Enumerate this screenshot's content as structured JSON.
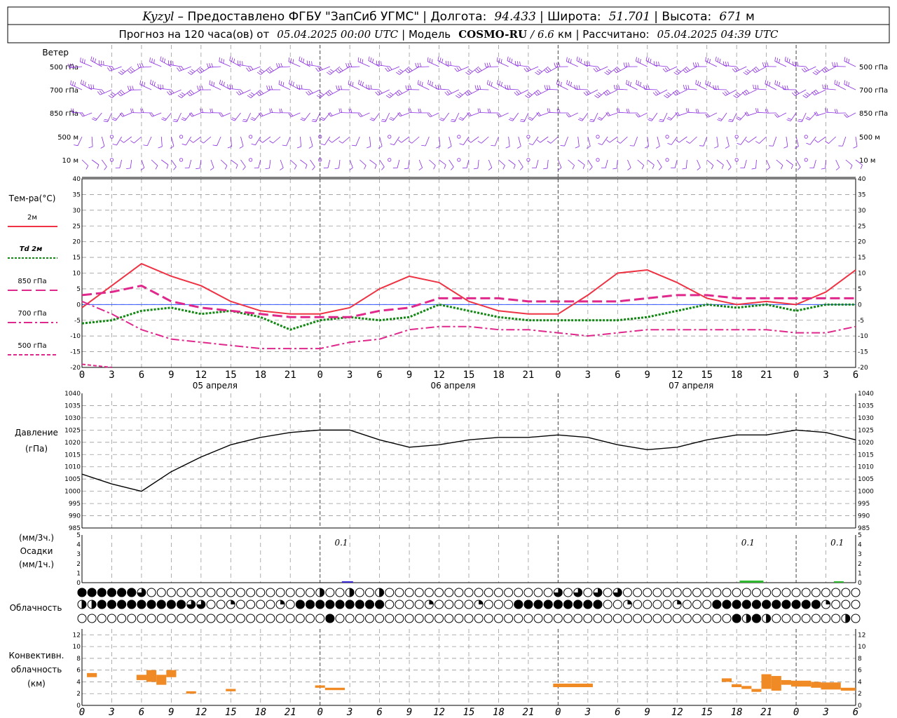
{
  "header": {
    "station": "Kyzyl",
    "dash": " – ",
    "provider": "Предоставлено ФГБУ \"ЗапСиб УГМС\"",
    "lon_label": "Долгота:",
    "lon_value": "94.433",
    "lat_label": "Широта:",
    "lat_value": "51.701",
    "alt_label": "Высота:",
    "alt_value": "671",
    "alt_unit": "м",
    "forecast_prefix": "Прогноз на 120 часа(ов) от",
    "forecast_start": "05.04.2025 00:00 UTC",
    "model_label": "Модель",
    "model_name": "COSMO-RU",
    "model_res": "6.6",
    "model_res_unit": "км",
    "computed_label": "Рассчитано:",
    "computed_time": "05.04.2025 04:39 UTC"
  },
  "wind": {
    "title": "Ветер",
    "levels": [
      "500 гПа",
      "700 гПа",
      "850 гПа",
      "500 м",
      "10 м"
    ],
    "barb_color": "#8a2be2"
  },
  "temperature": {
    "title": "Тем-ра(°C)",
    "legend": [
      {
        "label": "2м",
        "color": "#ee3344",
        "style": "solid"
      },
      {
        "label": "Td  2м",
        "color": "#118811",
        "style": "dotted"
      },
      {
        "label": "850 гПа",
        "color": "#e0288c",
        "style": "longdash"
      },
      {
        "label": "700 гПа",
        "color": "#e0288c",
        "style": "dashdot"
      },
      {
        "label": "500 гПа",
        "color": "#e0288c",
        "style": "shortdash"
      }
    ],
    "yticks": [
      "40",
      "35",
      "30",
      "25",
      "20",
      "15",
      "10",
      "5",
      "0",
      "-5",
      "-10",
      "-15",
      "-20"
    ]
  },
  "x_axis": {
    "hour_labels": [
      "0",
      "3",
      "6",
      "9",
      "12",
      "15",
      "18",
      "21",
      "0",
      "3",
      "6",
      "9",
      "12",
      "15",
      "18",
      "21",
      "0",
      "3",
      "6",
      "9",
      "12",
      "15",
      "18",
      "21",
      "0",
      "3",
      "6"
    ],
    "dates": [
      "05 апреля",
      "06 апреля",
      "07 апреля"
    ]
  },
  "pressure": {
    "title": "Давление",
    "unit": "(гПа)",
    "yticks": [
      "1040",
      "1035",
      "1030",
      "1025",
      "1020",
      "1015",
      "1010",
      "1005",
      "1000",
      "995",
      "990",
      "985"
    ]
  },
  "precip": {
    "unit_top": "(мм/3ч.)",
    "title": "Осадки",
    "unit_bottom": "(мм/1ч.)",
    "yticks": [
      "5",
      "4",
      "3",
      "2",
      "1",
      "0"
    ],
    "labels": [
      "0.1",
      "0.1",
      "0.1"
    ]
  },
  "cloud": {
    "title": "Облачность"
  },
  "convective": {
    "title_line1": "Конвективн.",
    "title_line2": "облачность",
    "unit": "(км)",
    "yticks": [
      "12",
      "10",
      "8",
      "6",
      "4",
      "2",
      "0"
    ]
  },
  "chart_data": [
    {
      "type": "line",
      "title": "Тем-ра(°C)",
      "ylim": [
        -20,
        40
      ],
      "x_hours": [
        0,
        3,
        6,
        9,
        12,
        15,
        18,
        21,
        24,
        27,
        30,
        33,
        36,
        39,
        42,
        45,
        48,
        51,
        54,
        57,
        60,
        63,
        66,
        69,
        72,
        75,
        78
      ],
      "series": [
        {
          "name": "2м",
          "values": [
            -1,
            6,
            13,
            9,
            6,
            1,
            -2,
            -3,
            -3,
            -1,
            5,
            9,
            7,
            1,
            -2,
            -3,
            -3,
            3,
            10,
            11,
            7,
            2,
            0,
            1,
            0,
            4,
            11
          ]
        },
        {
          "name": "Td  2м",
          "values": [
            -6,
            -5,
            -2,
            -1,
            -3,
            -2,
            -4,
            -8,
            -5,
            -4,
            -5,
            -4,
            0,
            -2,
            -4,
            -5,
            -5,
            -5,
            -5,
            -4,
            -2,
            0,
            -1,
            0,
            -2,
            0,
            0
          ]
        },
        {
          "name": "850 гПа",
          "values": [
            3,
            4,
            6,
            1,
            -1,
            -2,
            -3,
            -4,
            -4,
            -4,
            -2,
            -1,
            2,
            2,
            2,
            1,
            1,
            1,
            1,
            2,
            3,
            3,
            2,
            2,
            2,
            2,
            2
          ]
        },
        {
          "name": "700 гПа",
          "values": [
            1,
            -3,
            -8,
            -11,
            -12,
            -13,
            -14,
            -14,
            -14,
            -12,
            -11,
            -8,
            -7,
            -7,
            -8,
            -8,
            -9,
            -10,
            -9,
            -8,
            -8,
            -8,
            -8,
            -8,
            -9,
            -9,
            -7
          ]
        },
        {
          "name": "500 гПа",
          "values": [
            -19,
            -20
          ]
        }
      ]
    },
    {
      "type": "line",
      "title": "Давление",
      "ylim": [
        985,
        1040
      ],
      "x_hours": [
        0,
        3,
        6,
        9,
        12,
        15,
        18,
        21,
        24,
        27,
        30,
        33,
        36,
        39,
        42,
        45,
        48,
        51,
        54,
        57,
        60,
        63,
        66,
        69,
        72,
        75,
        78
      ],
      "values": [
        1007,
        1003,
        1000,
        1008,
        1014,
        1019,
        1022,
        1024,
        1025,
        1025,
        1021,
        1018,
        1019,
        1021,
        1022,
        1022,
        1023,
        1022,
        1019,
        1017,
        1018,
        1021,
        1023,
        1023,
        1025,
        1024,
        1021
      ]
    },
    {
      "type": "bar",
      "title": "Конвективн. облачность",
      "unit": "км",
      "ylim": [
        0,
        13
      ],
      "segments": [
        {
          "x": [
            0.5,
            1.5
          ],
          "y": [
            4.8,
            5.5
          ]
        },
        {
          "x": [
            5.5,
            6.5
          ],
          "y": [
            4.3,
            5.2
          ]
        },
        {
          "x": [
            6.5,
            7.5
          ],
          "y": [
            4.0,
            6.0
          ]
        },
        {
          "x": [
            7.5,
            8.5
          ],
          "y": [
            3.5,
            5.2
          ]
        },
        {
          "x": [
            8.5,
            9.5
          ],
          "y": [
            4.8,
            6.0
          ]
        },
        {
          "x": [
            10.5,
            11.5
          ],
          "y": [
            2.0,
            2.4
          ]
        },
        {
          "x": [
            14.5,
            15.5
          ],
          "y": [
            2.4,
            2.8
          ]
        },
        {
          "x": [
            23.5,
            24.5
          ],
          "y": [
            3.0,
            3.4
          ]
        },
        {
          "x": [
            24.5,
            26.5
          ],
          "y": [
            2.6,
            3.0
          ]
        },
        {
          "x": [
            47.5,
            51.5
          ],
          "y": [
            3.1,
            3.7
          ]
        },
        {
          "x": [
            64.5,
            65.5
          ],
          "y": [
            4.0,
            4.6
          ]
        },
        {
          "x": [
            65.5,
            66.5
          ],
          "y": [
            3.1,
            3.6
          ]
        },
        {
          "x": [
            66.5,
            67.5
          ],
          "y": [
            2.8,
            3.3
          ]
        },
        {
          "x": [
            67.5,
            68.5
          ],
          "y": [
            2.3,
            2.8
          ]
        },
        {
          "x": [
            68.5,
            69.5
          ],
          "y": [
            2.8,
            5.3
          ]
        },
        {
          "x": [
            69.5,
            70.5
          ],
          "y": [
            2.5,
            5.0
          ]
        },
        {
          "x": [
            70.5,
            71.5
          ],
          "y": [
            3.5,
            4.3
          ]
        },
        {
          "x": [
            71.5,
            73.5
          ],
          "y": [
            3.2,
            4.2
          ]
        },
        {
          "x": [
            73.5,
            74.5
          ],
          "y": [
            3.0,
            4.0
          ]
        },
        {
          "x": [
            74.5,
            76.5
          ],
          "y": [
            2.7,
            3.9
          ]
        },
        {
          "x": [
            76.5,
            78.0
          ],
          "y": [
            2.5,
            3.0
          ]
        }
      ]
    }
  ]
}
